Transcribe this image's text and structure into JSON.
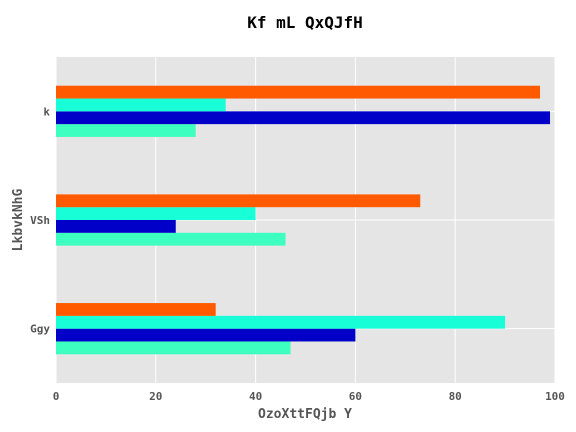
{
  "chart_data": {
    "type": "bar",
    "orientation": "horizontal",
    "title": "Kf mL QxQJfH",
    "xlabel": "OzoXttFQjb Y",
    "ylabel": "LkbvkNhG",
    "categories": [
      "Ggy",
      "VSh",
      "k"
    ],
    "xlim": [
      0,
      100
    ],
    "xticks": [
      0,
      20,
      40,
      60,
      80,
      100
    ],
    "grid": true,
    "legend": "none",
    "series": [
      {
        "color": "#3dffc0",
        "values": [
          47,
          46,
          28
        ]
      },
      {
        "color": "#0000c8",
        "values": [
          60,
          24,
          99
        ]
      },
      {
        "color": "#18ffd8",
        "values": [
          90,
          40,
          34
        ]
      },
      {
        "color": "#ff5a00",
        "values": [
          32,
          73,
          97
        ]
      }
    ]
  }
}
